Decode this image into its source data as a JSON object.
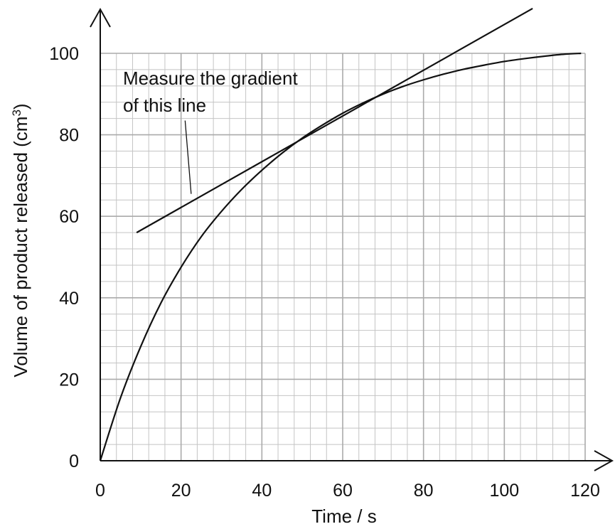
{
  "chart_data": {
    "type": "line",
    "xlabel": "Time / s",
    "ylabel_main": "Volume of product released (cm",
    "ylabel_sup": "3",
    "ylabel_close": ")",
    "xlim": [
      0,
      120
    ],
    "ylim": [
      0,
      100
    ],
    "x_ticks": [
      "0",
      "20",
      "40",
      "60",
      "80",
      "100",
      "120"
    ],
    "y_ticks": [
      "0",
      "20",
      "40",
      "60",
      "80",
      "100"
    ],
    "grid": true,
    "series": [
      {
        "x": [
          0,
          5,
          10,
          15,
          20,
          25,
          30,
          35,
          40,
          45,
          50,
          55,
          60,
          65,
          70,
          75,
          80,
          85,
          90,
          95,
          100,
          105,
          110,
          115,
          119
        ],
        "y": [
          0,
          15.4,
          28.0,
          38.7,
          47.5,
          55.0,
          61.2,
          66.6,
          71.3,
          75.5,
          79.2,
          82.4,
          85.3,
          87.8,
          90.0,
          91.9,
          93.5,
          94.9,
          96.1,
          97.1,
          98.0,
          98.7,
          99.3,
          99.8,
          100
        ]
      }
    ],
    "tangent": {
      "x": [
        9,
        107
      ],
      "y": [
        56,
        111
      ]
    },
    "annotation": {
      "lines": [
        "Measure the gradient",
        "of this line"
      ],
      "pointer_from": [
        21,
        83.5
      ],
      "pointer_to": [
        22.5,
        65.5
      ]
    },
    "colors": {
      "line": "#111111",
      "grid_major": "#aaaaaa",
      "grid_minor": "#c4c4c4"
    }
  }
}
